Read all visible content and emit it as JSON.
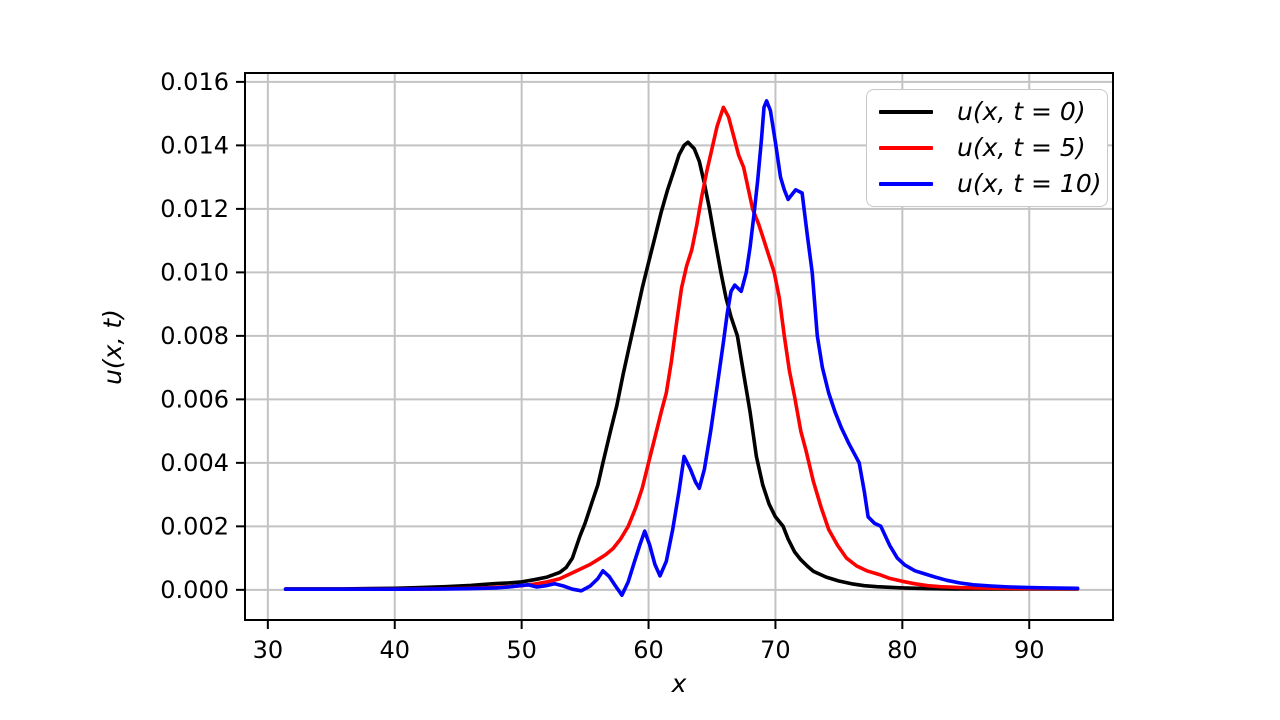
{
  "figure": {
    "background": "#ffffff",
    "frame_color": "#000000",
    "grid_color": "#c3c3c3",
    "legend_border_color": "#c8c8c8"
  },
  "chart_data": {
    "type": "line",
    "title": "",
    "xlabel": "x",
    "ylabel": "u(x, t)",
    "xlim": [
      28.2,
      96.6
    ],
    "ylim": [
      -0.00095,
      0.01628
    ],
    "grid": true,
    "legend_position": "upper right",
    "x_ticks": [
      30,
      40,
      50,
      60,
      70,
      80,
      90
    ],
    "x_tick_labels": [
      "30",
      "40",
      "50",
      "60",
      "70",
      "80",
      "90"
    ],
    "y_ticks": [
      0.0,
      0.002,
      0.004,
      0.006,
      0.008,
      0.01,
      0.012,
      0.014,
      0.016
    ],
    "y_tick_labels": [
      "0.000",
      "0.002",
      "0.004",
      "0.006",
      "0.008",
      "0.010",
      "0.012",
      "0.014",
      "0.016"
    ],
    "series": [
      {
        "name": "u(x, t = 0)",
        "color": "#000000",
        "points": [
          [
            31.4,
            3e-05
          ],
          [
            34,
            3e-05
          ],
          [
            36,
            3e-05
          ],
          [
            38,
            4e-05
          ],
          [
            40,
            5e-05
          ],
          [
            42,
            7e-05
          ],
          [
            44,
            0.0001
          ],
          [
            45,
            0.00012
          ],
          [
            46,
            0.00014
          ],
          [
            47,
            0.00017
          ],
          [
            48,
            0.0002
          ],
          [
            49,
            0.00022
          ],
          [
            50,
            0.00025
          ],
          [
            51,
            0.00032
          ],
          [
            52,
            0.0004
          ],
          [
            53,
            0.00055
          ],
          [
            53.5,
            0.0007
          ],
          [
            54,
            0.001
          ],
          [
            54.6,
            0.0017
          ],
          [
            55,
            0.0021
          ],
          [
            55.5,
            0.0027
          ],
          [
            56,
            0.0033
          ],
          [
            56.4,
            0.004
          ],
          [
            57,
            0.005
          ],
          [
            57.5,
            0.0058
          ],
          [
            58,
            0.0068
          ],
          [
            58.5,
            0.0077
          ],
          [
            59,
            0.0086
          ],
          [
            59.5,
            0.0095
          ],
          [
            60,
            0.0103
          ],
          [
            60.5,
            0.0111
          ],
          [
            61,
            0.0119
          ],
          [
            61.5,
            0.0126
          ],
          [
            62,
            0.0132
          ],
          [
            62.4,
            0.0137
          ],
          [
            62.8,
            0.014
          ],
          [
            63.1,
            0.0141
          ],
          [
            63.6,
            0.0139
          ],
          [
            64,
            0.0135
          ],
          [
            64.4,
            0.0128
          ],
          [
            64.8,
            0.012
          ],
          [
            65.2,
            0.0111
          ],
          [
            65.7,
            0.01
          ],
          [
            66.1,
            0.0092
          ],
          [
            66.5,
            0.0086
          ],
          [
            67,
            0.008
          ],
          [
            67.5,
            0.0068
          ],
          [
            68,
            0.0056
          ],
          [
            68.5,
            0.0042
          ],
          [
            69,
            0.0033
          ],
          [
            69.5,
            0.0027
          ],
          [
            70,
            0.0023
          ],
          [
            70.6,
            0.002
          ],
          [
            71,
            0.0016
          ],
          [
            71.5,
            0.0012
          ],
          [
            72,
            0.00095
          ],
          [
            72.5,
            0.00075
          ],
          [
            73,
            0.00058
          ],
          [
            74,
            0.0004
          ],
          [
            75,
            0.00028
          ],
          [
            76,
            0.00019
          ],
          [
            77,
            0.00013
          ],
          [
            78,
            0.0001
          ],
          [
            79,
            8e-05
          ],
          [
            80,
            6e-05
          ],
          [
            82,
            4e-05
          ],
          [
            84,
            3e-05
          ],
          [
            86,
            3e-05
          ],
          [
            88,
            3e-05
          ],
          [
            90,
            3e-05
          ],
          [
            92,
            3e-05
          ],
          [
            93.8,
            3e-05
          ]
        ]
      },
      {
        "name": "u(x, t = 5)",
        "color": "#ff0000",
        "points": [
          [
            31.4,
            2e-05
          ],
          [
            35,
            2e-05
          ],
          [
            40,
            2e-05
          ],
          [
            43,
            3e-05
          ],
          [
            45,
            4e-05
          ],
          [
            47,
            6e-05
          ],
          [
            48,
            8e-05
          ],
          [
            49,
            0.0001
          ],
          [
            50,
            0.00013
          ],
          [
            51,
            0.00018
          ],
          [
            52,
            0.00025
          ],
          [
            53,
            0.00035
          ],
          [
            53.8,
            0.0005
          ],
          [
            54.6,
            0.00065
          ],
          [
            55.4,
            0.0008
          ],
          [
            56,
            0.00095
          ],
          [
            56.6,
            0.0011
          ],
          [
            57.2,
            0.0013
          ],
          [
            57.8,
            0.0016
          ],
          [
            58.4,
            0.002
          ],
          [
            59,
            0.0026
          ],
          [
            59.5,
            0.0032
          ],
          [
            60,
            0.004
          ],
          [
            60.5,
            0.0048
          ],
          [
            61,
            0.0056
          ],
          [
            61.4,
            0.0062
          ],
          [
            61.8,
            0.0072
          ],
          [
            62.2,
            0.0084
          ],
          [
            62.6,
            0.0095
          ],
          [
            63,
            0.0102
          ],
          [
            63.4,
            0.0107
          ],
          [
            63.8,
            0.0115
          ],
          [
            64.2,
            0.0124
          ],
          [
            64.6,
            0.0132
          ],
          [
            65,
            0.0139
          ],
          [
            65.4,
            0.0146
          ],
          [
            65.9,
            0.0152
          ],
          [
            66.3,
            0.0149
          ],
          [
            66.7,
            0.0143
          ],
          [
            67.1,
            0.0137
          ],
          [
            67.5,
            0.0133
          ],
          [
            68.2,
            0.012
          ],
          [
            68.7,
            0.0115
          ],
          [
            69.1,
            0.011
          ],
          [
            69.5,
            0.0105
          ],
          [
            69.9,
            0.01
          ],
          [
            70.3,
            0.0092
          ],
          [
            70.7,
            0.008
          ],
          [
            71.1,
            0.0069
          ],
          [
            71.5,
            0.0061
          ],
          [
            72,
            0.005
          ],
          [
            72.4,
            0.0044
          ],
          [
            73,
            0.0034
          ],
          [
            73.6,
            0.0026
          ],
          [
            74.2,
            0.0019
          ],
          [
            74.9,
            0.0014
          ],
          [
            75.6,
            0.001
          ],
          [
            76.4,
            0.00075
          ],
          [
            77.2,
            0.0006
          ],
          [
            78.2,
            0.00048
          ],
          [
            79,
            0.00036
          ],
          [
            80,
            0.00027
          ],
          [
            81,
            0.00019
          ],
          [
            82,
            0.00013
          ],
          [
            83,
            0.0001
          ],
          [
            84.5,
            7e-05
          ],
          [
            86,
            6e-05
          ],
          [
            88,
            5e-05
          ],
          [
            90,
            4e-05
          ],
          [
            92,
            4e-05
          ],
          [
            93.8,
            4e-05
          ]
        ]
      },
      {
        "name": "u(x, t = 10)",
        "color": "#0000ff",
        "points": [
          [
            31.4,
            2e-05
          ],
          [
            35,
            2e-05
          ],
          [
            40,
            2e-05
          ],
          [
            44,
            3e-05
          ],
          [
            46,
            4e-05
          ],
          [
            48,
            6e-05
          ],
          [
            49,
            9e-05
          ],
          [
            49.8,
            0.00013
          ],
          [
            50.5,
            0.00016
          ],
          [
            51.2,
            9e-05
          ],
          [
            51.9,
            0.00013
          ],
          [
            52.6,
            0.00019
          ],
          [
            53.3,
            0.00012
          ],
          [
            54,
            2e-05
          ],
          [
            54.7,
            -3e-05
          ],
          [
            55.4,
            0.00012
          ],
          [
            56,
            0.00035
          ],
          [
            56.4,
            0.0006
          ],
          [
            56.9,
            0.00042
          ],
          [
            57.4,
            0.00012
          ],
          [
            57.9,
            -0.00017
          ],
          [
            58.4,
            0.00025
          ],
          [
            58.9,
            0.0009
          ],
          [
            59.3,
            0.0014
          ],
          [
            59.7,
            0.00185
          ],
          [
            60.1,
            0.0014
          ],
          [
            60.5,
            0.0008
          ],
          [
            60.9,
            0.00044
          ],
          [
            61.4,
            0.0009
          ],
          [
            61.9,
            0.0019
          ],
          [
            62.4,
            0.0031
          ],
          [
            62.8,
            0.0042
          ],
          [
            63.3,
            0.0038
          ],
          [
            63.7,
            0.0034
          ],
          [
            64,
            0.0032
          ],
          [
            64.4,
            0.0038
          ],
          [
            64.9,
            0.005
          ],
          [
            65.4,
            0.0064
          ],
          [
            65.9,
            0.0078
          ],
          [
            66.2,
            0.0087
          ],
          [
            66.5,
            0.0094
          ],
          [
            66.8,
            0.0096
          ],
          [
            67.3,
            0.0094
          ],
          [
            67.7,
            0.01
          ],
          [
            68,
            0.0108
          ],
          [
            68.3,
            0.0118
          ],
          [
            68.6,
            0.0129
          ],
          [
            68.9,
            0.0142
          ],
          [
            69.1,
            0.0152
          ],
          [
            69.3,
            0.0154
          ],
          [
            69.6,
            0.0151
          ],
          [
            70,
            0.0141
          ],
          [
            70.4,
            0.013
          ],
          [
            70.7,
            0.0126
          ],
          [
            71,
            0.0123
          ],
          [
            71.6,
            0.0126
          ],
          [
            72.1,
            0.0125
          ],
          [
            72.5,
            0.0112
          ],
          [
            72.9,
            0.01
          ],
          [
            73.3,
            0.008
          ],
          [
            73.7,
            0.007
          ],
          [
            74.2,
            0.0062
          ],
          [
            74.7,
            0.0056
          ],
          [
            75.2,
            0.0051
          ],
          [
            75.8,
            0.0046
          ],
          [
            76.2,
            0.0043
          ],
          [
            76.6,
            0.004
          ],
          [
            77,
            0.0031
          ],
          [
            77.3,
            0.0023
          ],
          [
            77.8,
            0.0021
          ],
          [
            78.3,
            0.002
          ],
          [
            79,
            0.0014
          ],
          [
            79.6,
            0.001
          ],
          [
            80.2,
            0.00078
          ],
          [
            81,
            0.0006
          ],
          [
            81.8,
            0.0005
          ],
          [
            82.6,
            0.0004
          ],
          [
            83.5,
            0.0003
          ],
          [
            84.5,
            0.00022
          ],
          [
            85.6,
            0.00016
          ],
          [
            87,
            0.00012
          ],
          [
            88.5,
            9e-05
          ],
          [
            90,
            7e-05
          ],
          [
            91.5,
            6e-05
          ],
          [
            93.8,
            5e-05
          ]
        ]
      }
    ]
  }
}
